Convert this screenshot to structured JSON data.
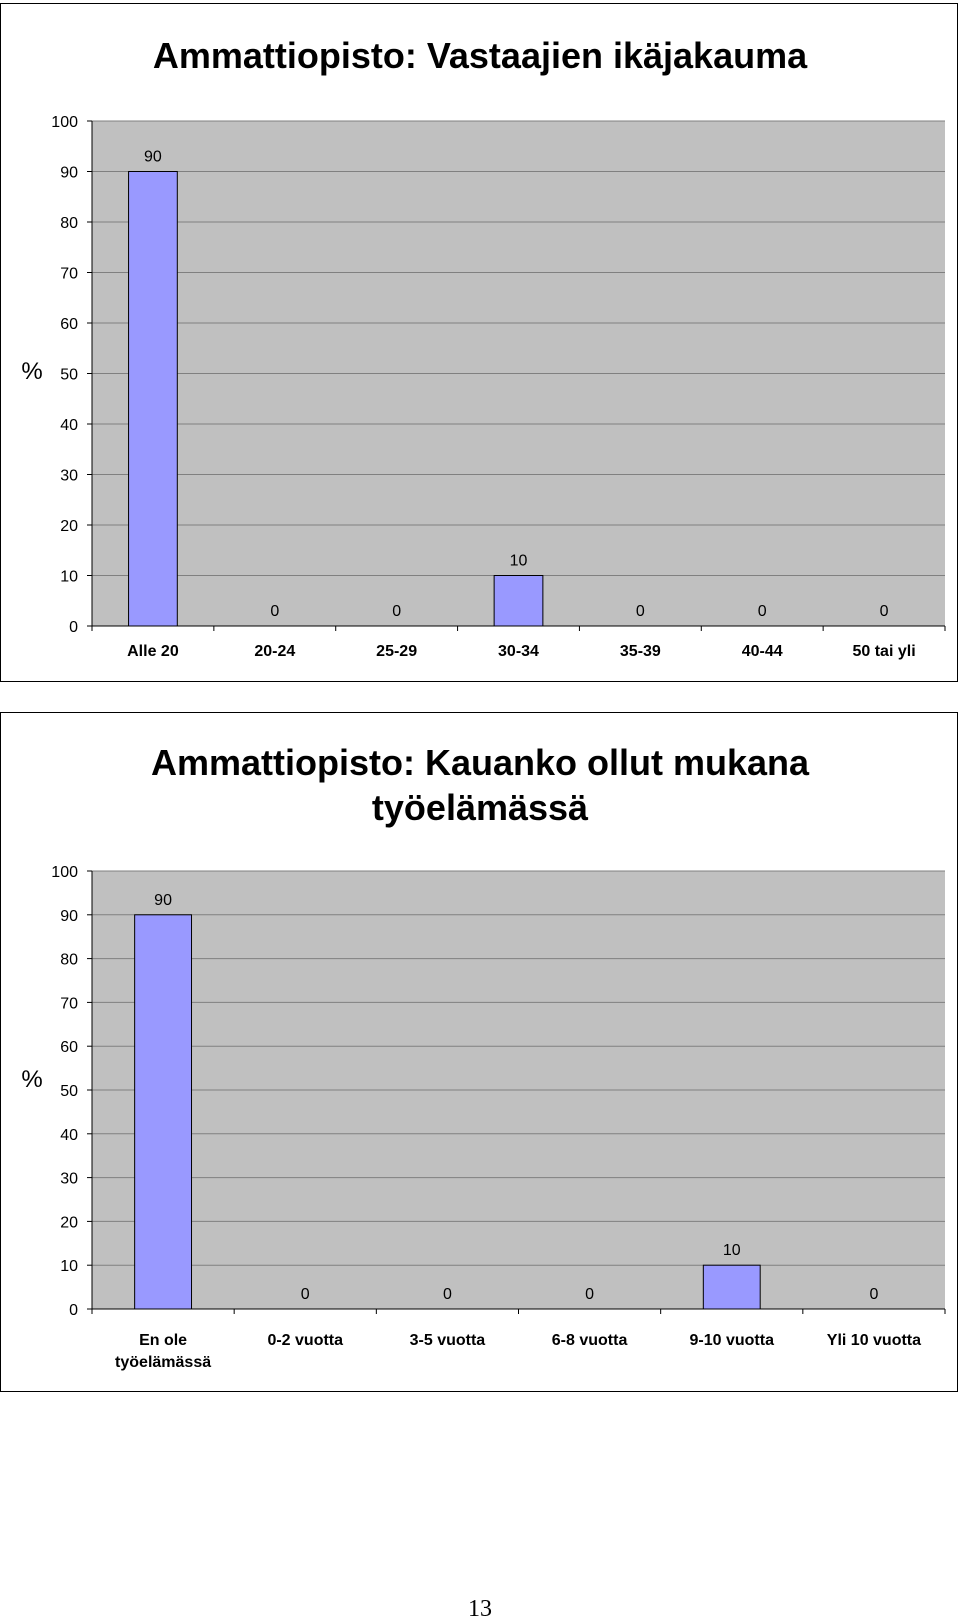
{
  "colors": {
    "bar_fill": "#9999ff",
    "plot_background": "#c0c0c0",
    "gridline": "#808080",
    "frame": "#000000"
  },
  "chart_data": [
    {
      "type": "bar",
      "title": "Ammattiopisto: Vastaajien ikäjakauma",
      "ylabel": "%",
      "xlabel": "",
      "ylim": [
        0,
        100
      ],
      "yticks": [
        0,
        10,
        20,
        30,
        40,
        50,
        60,
        70,
        80,
        90,
        100
      ],
      "grid": true,
      "legend": "none",
      "categories": [
        "Alle 20",
        "20-24",
        "25-29",
        "30-34",
        "35-39",
        "40-44",
        "50 tai yli"
      ],
      "values": [
        90,
        0,
        0,
        10,
        0,
        0,
        0
      ]
    },
    {
      "type": "bar",
      "title": "Ammattiopisto: Kauanko ollut mukana työelämässä",
      "ylabel": "%",
      "xlabel": "",
      "ylim": [
        0,
        100
      ],
      "yticks": [
        0,
        10,
        20,
        30,
        40,
        50,
        60,
        70,
        80,
        90,
        100
      ],
      "grid": true,
      "legend": "none",
      "categories": [
        "En ole työelämässä",
        "0-2 vuotta",
        "3-5 vuotta",
        "6-8 vuotta",
        "9-10 vuotta",
        "Yli 10 vuotta"
      ],
      "values": [
        90,
        0,
        0,
        0,
        10,
        0
      ]
    }
  ],
  "page": {
    "number": "13"
  }
}
